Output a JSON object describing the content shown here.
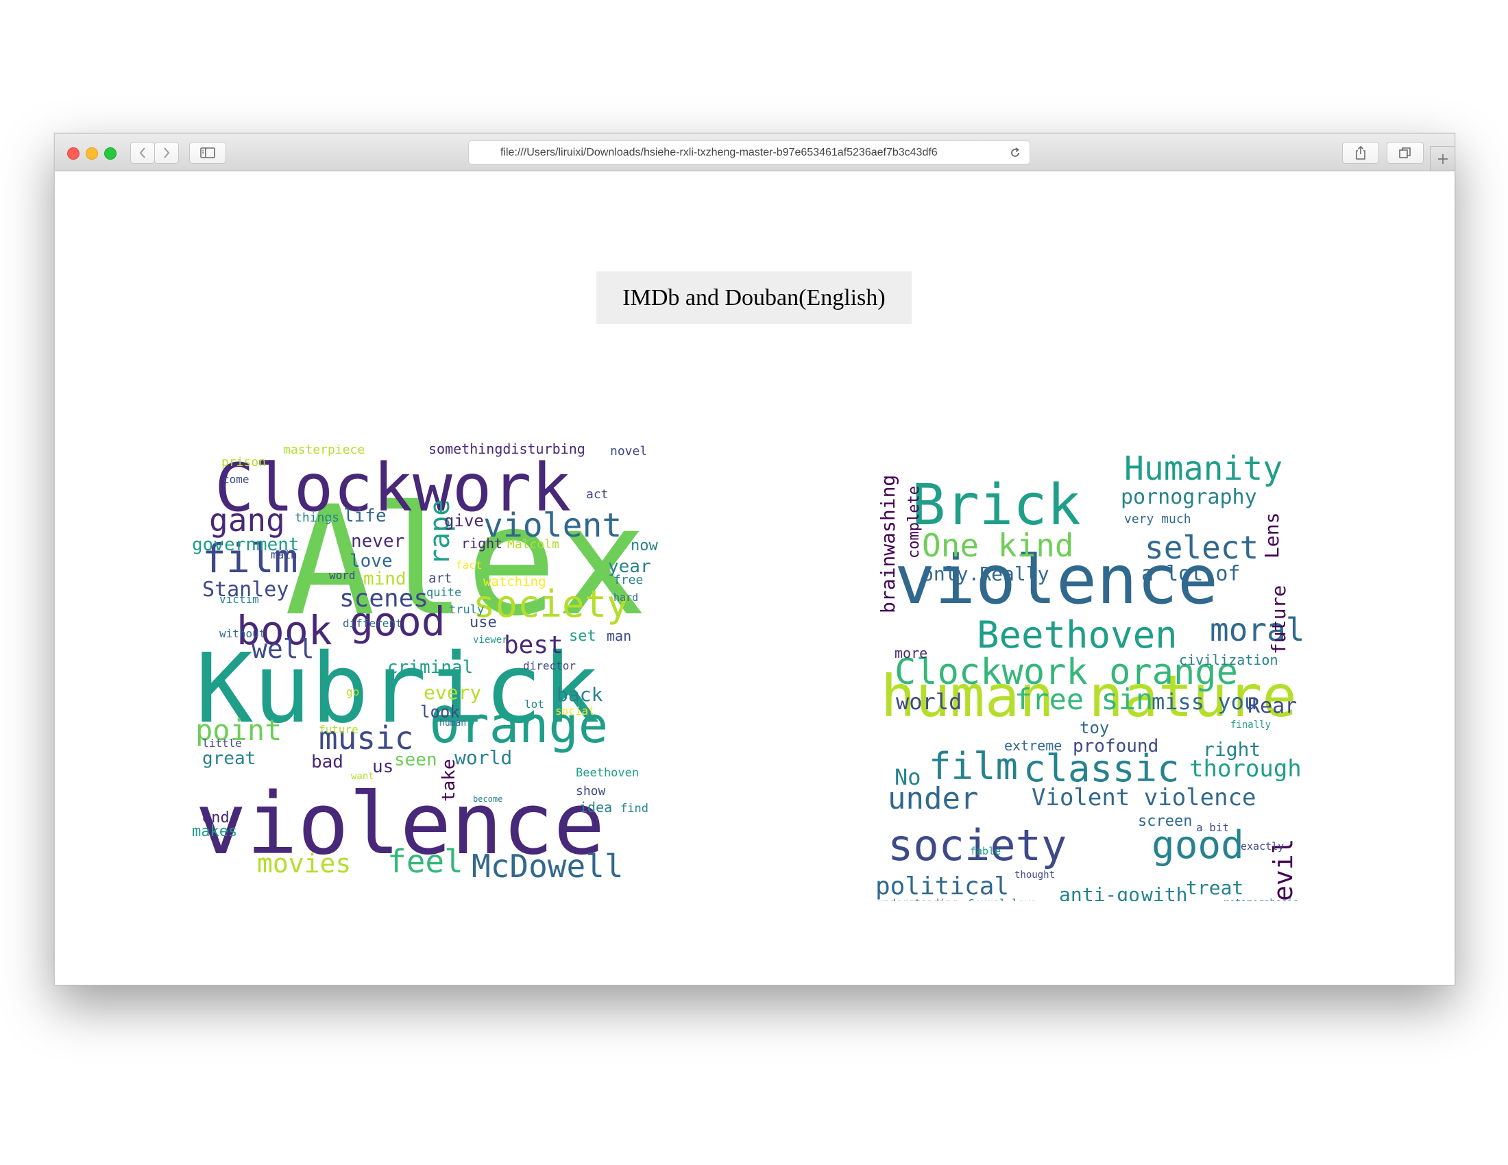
{
  "browser": {
    "address": "file:///Users/liruixi/Downloads/hsiehe-rxli-txzheng-master-b97e653461af5236aef7b3c43df6"
  },
  "page": {
    "title": "IMDb and Douban(English)"
  },
  "palette": [
    "#440154",
    "#482878",
    "#3e4989",
    "#31688e",
    "#26828e",
    "#1f9e89",
    "#35b779",
    "#6ece58",
    "#b5de2b",
    "#fde725"
  ],
  "wordclouds": [
    {
      "name": "imdb",
      "words": [
        [
          "Alex",
          120,
          -20,
          0,
          0,
          7
        ],
        [
          "Kubrick",
          220,
          -24,
          90,
          0,
          5
        ],
        [
          "Clockwork",
          40,
          -40,
          0,
          0,
          1
        ],
        [
          "violence",
          560,
          -38,
          0,
          0,
          1
        ],
        [
          "Orange",
          430,
          -82,
          0,
          0,
          5
        ],
        [
          "film",
          200,
          -133,
          0,
          0,
          2
        ],
        [
          "book",
          280,
          -290,
          0,
          0,
          1
        ],
        [
          "good",
          355,
          -245,
          0,
          0,
          1
        ],
        [
          "society",
          305,
          -450,
          0,
          0,
          8
        ],
        [
          "violent",
          115,
          -495,
          0,
          0,
          3
        ],
        [
          "McDowell",
          300,
          -455,
          0,
          0,
          3
        ],
        [
          "music",
          260,
          -200,
          0,
          0,
          2
        ],
        [
          "feel",
          315,
          -320,
          0,
          0,
          6
        ],
        [
          "movies",
          315,
          -115,
          0,
          0,
          8
        ],
        [
          "gang",
          130,
          -50,
          0,
          0,
          1
        ],
        [
          "scenes",
          290,
          -230,
          0,
          0,
          2
        ],
        [
          "best",
          335,
          -493,
          0,
          0,
          1
        ],
        [
          "well",
          330,
          -105,
          0,
          0,
          2
        ],
        [
          "point",
          430,
          -20,
          0,
          0,
          7
        ],
        [
          "rape",
          0,
          0,
          0,
          -90,
          5
        ],
        [
          "Stanley",
          215,
          -35,
          0,
          0,
          2
        ],
        [
          "government",
          145,
          -18,
          0,
          0,
          5
        ],
        [
          "criminal",
          355,
          -335,
          0,
          0,
          5
        ],
        [
          "world",
          495,
          -425,
          0,
          0,
          4
        ],
        [
          "life",
          100,
          -230,
          0,
          0,
          3
        ],
        [
          "never",
          120,
          -265,
          0,
          0,
          1
        ],
        [
          "love",
          148,
          -265,
          0,
          0,
          3
        ],
        [
          "mind",
          175,
          -275,
          0,
          0,
          8
        ],
        [
          "every",
          386,
          -412,
          0,
          0,
          8
        ],
        [
          "back",
          390,
          -555,
          0,
          0,
          4
        ],
        [
          "seen",
          486,
          -345,
          0,
          0,
          7
        ],
        [
          "bad",
          482,
          -205,
          0,
          0,
          1
        ],
        [
          "great",
          483,
          -35,
          0,
          0,
          4
        ],
        [
          "us",
          492,
          -275,
          0,
          0,
          1
        ],
        [
          "look",
          412,
          -397,
          0,
          0,
          2
        ],
        [
          "year",
          235,
          -637,
          0,
          0,
          4
        ],
        [
          "now",
          190,
          -675,
          0,
          0,
          4
        ],
        [
          "give",
          100,
          -400,
          0,
          0,
          1
        ],
        [
          "right",
          130,
          -455,
          0,
          0,
          1
        ],
        [
          "Malcolm",
          130,
          -515,
          0,
          0,
          8
        ],
        [
          "somethingdisturbing",
          30,
          -375,
          0,
          0,
          1
        ],
        [
          "novel",
          30,
          -642,
          0,
          0,
          2
        ],
        [
          "masterpiece",
          30,
          -160,
          0,
          0,
          8
        ],
        [
          "prison",
          55,
          -65,
          0,
          0,
          8
        ],
        [
          "come",
          80,
          -73,
          0,
          0,
          2
        ],
        [
          "act",
          85,
          -595,
          0,
          0,
          2
        ],
        [
          "things",
          105,
          -160,
          0,
          0,
          4
        ],
        [
          "use",
          350,
          -400,
          0,
          0,
          2
        ],
        [
          "set",
          350,
          -575,
          0,
          0,
          5
        ],
        [
          "man",
          350,
          -640,
          0,
          0,
          2
        ],
        [
          "watching",
          275,
          -465,
          0,
          0,
          9
        ],
        [
          "art",
          275,
          -385,
          0,
          0,
          2
        ],
        [
          "quite",
          290,
          -375,
          0,
          0,
          4
        ],
        [
          "free",
          285,
          -638,
          0,
          0,
          4
        ],
        [
          "hard",
          305,
          -635,
          0,
          0,
          3
        ],
        [
          "truly",
          265,
          -408,
          0,
          0,
          4
        ],
        [
          "different",
          340,
          -275,
          0,
          0,
          3
        ],
        [
          "without",
          355,
          -70,
          0,
          0,
          3
        ],
        [
          "victim",
          290,
          -50,
          0,
          0,
          4
        ],
        [
          "director",
          380,
          -520,
          0,
          0,
          2
        ],
        [
          "take",
          0,
          0,
          0,
          0,
          0
        ],
        [
          "show",
          570,
          -595,
          0,
          0,
          2
        ],
        [
          "idea",
          590,
          -590,
          0,
          0,
          4
        ],
        [
          "find",
          590,
          -650,
          0,
          0,
          4
        ],
        [
          "end",
          615,
          -35,
          0,
          0,
          1
        ],
        [
          "makes",
          635,
          -30,
          0,
          0,
          5
        ],
        [
          "future",
          440,
          -230,
          0,
          0,
          8
        ],
        [
          "little",
          470,
          -35,
          0,
          0,
          2
        ],
        [
          "Beethoven",
          490,
          -605,
          0,
          0,
          5
        ],
        [
          "main",
          210,
          -150,
          0,
          0,
          2
        ],
        [
          "word",
          250,
          -280,
          0,
          0,
          2
        ],
        [
          "fact",
          175,
          -410,
          0,
          0,
          9
        ],
        [
          "viewer",
          390,
          -415,
          0,
          0,
          5
        ],
        [
          "lot",
          450,
          -508,
          0,
          0,
          4
        ],
        [
          "human",
          443,
          -406,
          0,
          0,
          3
        ],
        [
          "go",
          390,
          -262,
          0,
          0,
          8
        ],
        [
          "social",
          415,
          -565,
          0,
          0,
          9
        ],
        [
          "want",
          515,
          -270,
          0,
          0,
          8
        ],
        [
          "become",
          570,
          -465,
          0,
          0,
          4
        ]
      ]
    },
    {
      "name": "douban",
      "words": [
        [
          "violence",
          225,
          -100,
          0,
          0,
          3
        ],
        [
          "human nature",
          290,
          -10,
          0,
          0,
          8
        ],
        [
          "Brick",
          50,
          -78,
          0,
          0,
          5
        ],
        [
          "Humanity",
          30,
          -400,
          0,
          0,
          5
        ],
        [
          "One kind",
          95,
          -105,
          0,
          0,
          7
        ],
        [
          "select",
          95,
          -440,
          0,
          0,
          3
        ],
        [
          "Beethoven",
          245,
          -110,
          0,
          0,
          5
        ],
        [
          "moral",
          245,
          -525,
          0,
          0,
          3
        ],
        [
          "Clockwork orange",
          310,
          -40,
          0,
          0,
          6
        ],
        [
          "free sin",
          360,
          -200,
          0,
          0,
          6
        ],
        [
          "miss you",
          375,
          -460,
          0,
          0,
          3
        ],
        [
          "film",
          440,
          -80,
          0,
          0,
          4
        ],
        [
          "classic",
          440,
          -245,
          0,
          0,
          4
        ],
        [
          "thorough",
          465,
          -540,
          0,
          0,
          5
        ],
        [
          "society",
          565,
          -30,
          0,
          0,
          2
        ],
        [
          "good",
          560,
          -460,
          0,
          0,
          4
        ],
        [
          "Violent violence",
          515,
          -240,
          0,
          0,
          3
        ],
        [
          "under",
          505,
          -30,
          0,
          0,
          3
        ],
        [
          "political",
          635,
          -20,
          0,
          0,
          3
        ],
        [
          "anti-go",
          670,
          -295,
          0,
          0,
          4
        ],
        [
          "with",
          670,
          -485,
          0,
          0,
          4
        ],
        [
          "treat",
          655,
          -560,
          0,
          0,
          4
        ],
        [
          "pornography",
          75,
          -400,
          0,
          0,
          4
        ],
        [
          "only.Really",
          160,
          -90,
          0,
          0,
          3
        ],
        [
          "a lot of",
          160,
          -440,
          0,
          0,
          3
        ],
        [
          "world",
          415,
          -35,
          0,
          0,
          2
        ],
        [
          "profound",
          515,
          -310,
          0,
          0,
          2
        ],
        [
          "right",
          485,
          -545,
          0,
          0,
          4
        ],
        [
          "Rear",
          420,
          -620,
          0,
          0,
          2
        ],
        [
          "extreme",
          475,
          -230,
          0,
          0,
          3
        ],
        [
          "No",
          490,
          -30,
          0,
          0,
          4
        ],
        [
          "toy",
          465,
          -320,
          0,
          0,
          3
        ],
        [
          "more",
          300,
          -50,
          0,
          0,
          1
        ],
        [
          "brainwashing",
          0,
          0,
          0,
          0,
          0
        ],
        [
          "civilization",
          330,
          -520,
          0,
          0,
          4
        ],
        [
          "very much",
          105,
          -370,
          0,
          0,
          3
        ],
        [
          "Lens",
          0,
          0,
          0,
          0,
          0
        ],
        [
          "future",
          0,
          0,
          0,
          0,
          0
        ],
        [
          "evil",
          0,
          0,
          0,
          0,
          0
        ],
        [
          "complete",
          0,
          0,
          0,
          0,
          0
        ],
        [
          "finally",
          405,
          -605,
          0,
          0,
          5
        ],
        [
          "screen",
          570,
          -420,
          0,
          0,
          3
        ],
        [
          "a bit",
          575,
          -530,
          0,
          0,
          2
        ],
        [
          "exactly",
          610,
          -590,
          0,
          0,
          2
        ],
        [
          "thought",
          630,
          -225,
          0,
          0,
          2
        ],
        [
          "fable",
          595,
          -120,
          0,
          0,
          5
        ],
        [
          "understanding",
          655,
          -10,
          0,
          0,
          3
        ],
        [
          "Sexual love",
          655,
          -145,
          0,
          0,
          4
        ],
        [
          "metamorphosis",
          665,
          -545,
          0,
          0,
          4
        ]
      ]
    }
  ]
}
